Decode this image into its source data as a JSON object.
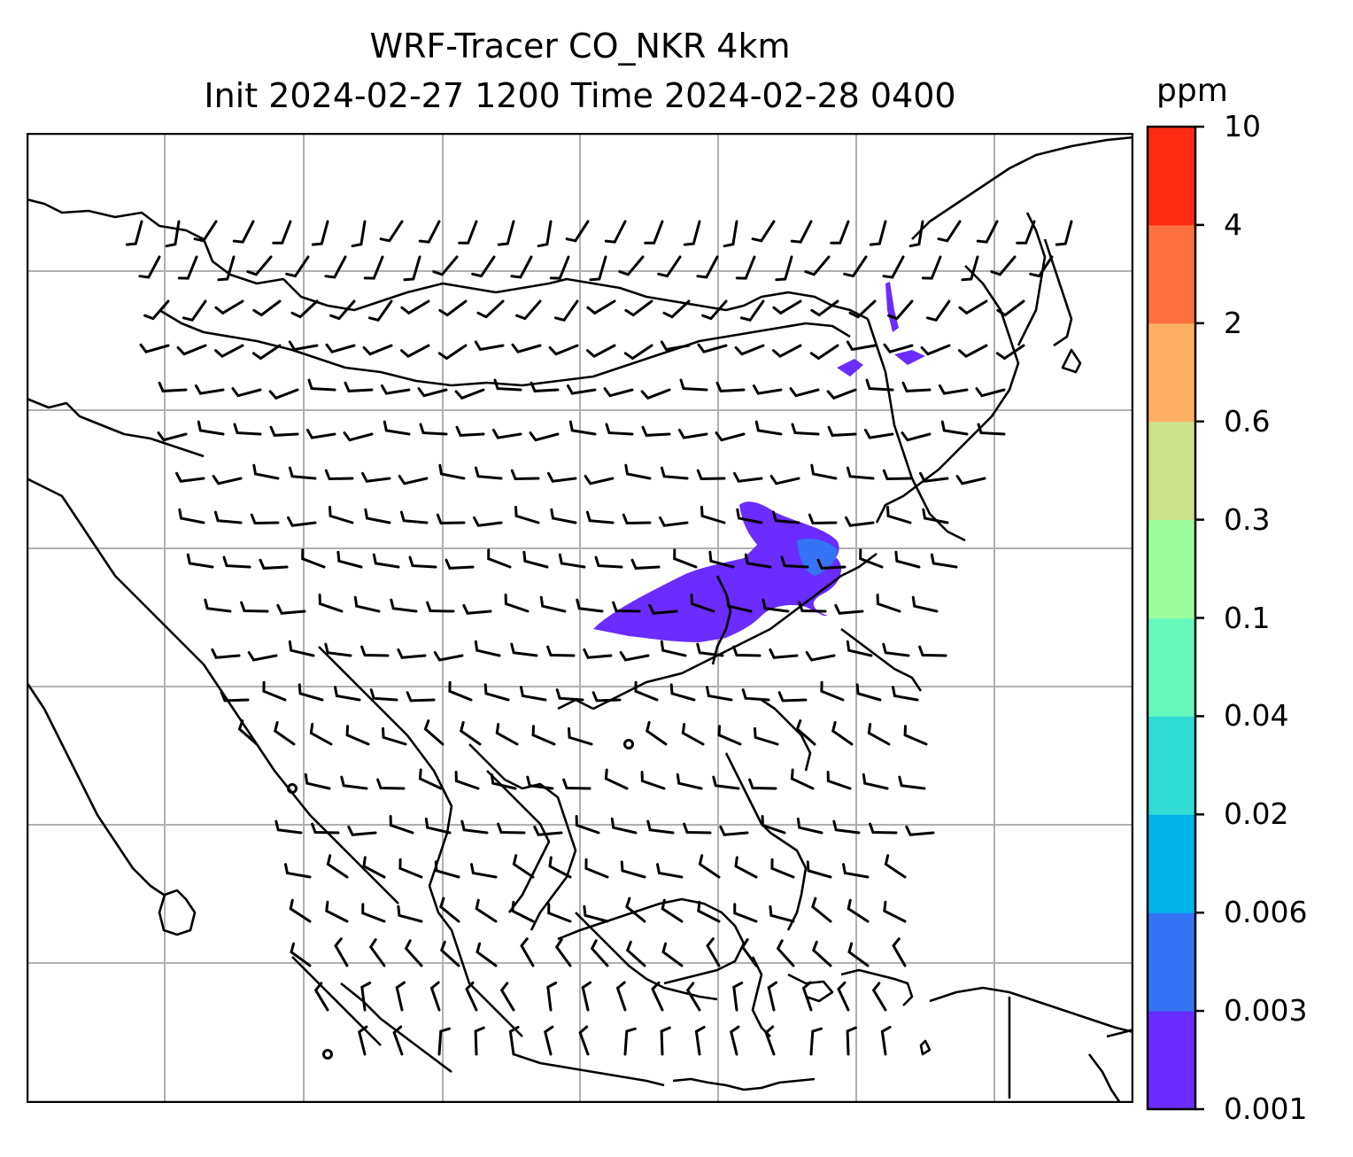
{
  "title": {
    "line1": "WRF-Tracer CO_NKR 4km",
    "line2": "Init 2024-02-27 1200 Time 2024-02-28 0400"
  },
  "colorbar": {
    "unit": "ppm",
    "levels": [
      "0.001",
      "0.003",
      "0.006",
      "0.02",
      "0.04",
      "0.1",
      "0.3",
      "0.6",
      "2",
      "4",
      "10"
    ],
    "colors": [
      "#6a2cff",
      "#3573f5",
      "#00b4ea",
      "#30dcd4",
      "#66f8bc",
      "#9cfc9c",
      "#cce08a",
      "#fdb064",
      "#fe7040",
      "#fd2a14"
    ]
  },
  "map": {
    "coastline_color": "#000000",
    "grid_color": "#b0b0b0",
    "tracer_color": "#6a2cff",
    "tracer_inner_color": "#3573f5",
    "barb_color": "#000000"
  }
}
